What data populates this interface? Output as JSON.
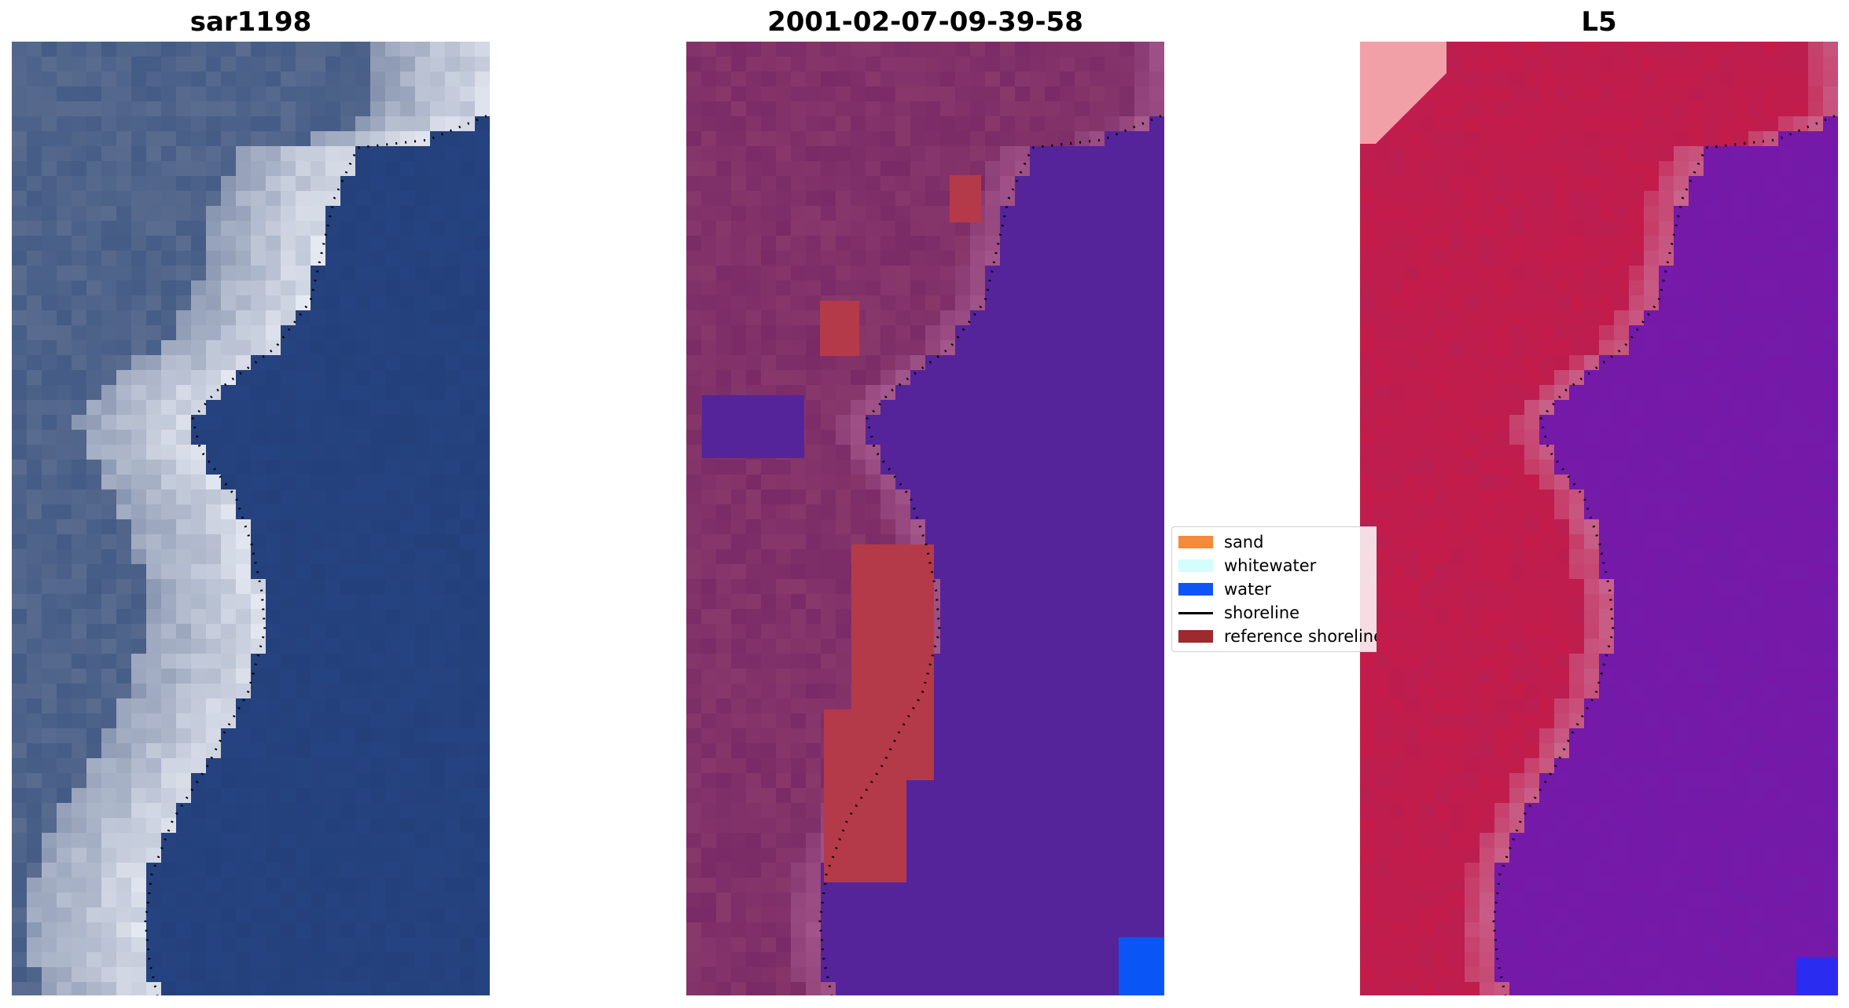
{
  "panels": [
    {
      "title": "sar1198",
      "style": "rgb"
    },
    {
      "title": "2001-02-07-09-39-58",
      "style": "classified"
    },
    {
      "title": "L5",
      "style": "index"
    }
  ],
  "legend": {
    "items": [
      {
        "label": "sand",
        "color": "#f58a3c",
        "type": "patch"
      },
      {
        "label": "whitewater",
        "color": "#d5fdfb",
        "type": "patch"
      },
      {
        "label": "water",
        "color": "#0e55f5",
        "type": "patch"
      },
      {
        "label": "shoreline",
        "color": "#000000",
        "type": "line"
      },
      {
        "label": "reference shoreline",
        "color": "#9c2a2f",
        "type": "patch"
      }
    ]
  },
  "colors": {
    "rgb_water": "#23407b",
    "rgb_land": "#5a6c8f",
    "rgb_foam": "#e9ecf4",
    "class_land": "#7a2a66",
    "class_water": "#55249a",
    "class_ref": "#b53a49",
    "class_blue": "#0a55f5",
    "index_land": "#c41c4a",
    "index_water": "#7618a8",
    "index_light": "#f2a0a8"
  }
}
